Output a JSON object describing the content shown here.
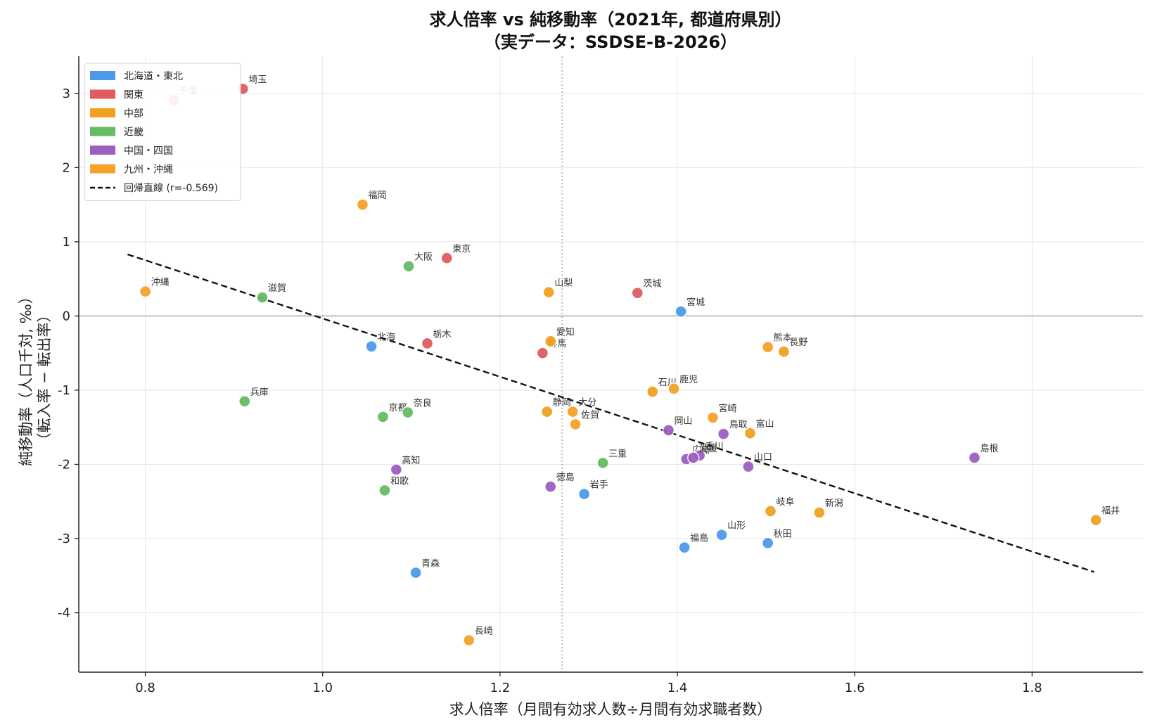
{
  "chart_data": {
    "type": "scatter",
    "title": "求人倍率 vs 純移動率（2021年, 都道府県別）",
    "subtitle": "（実データ：SSDSE-B-2026）",
    "xlabel": "求人倍率（月間有効求人数÷月間有効求職者数）",
    "ylabel": "純移動率（人口千対, ‰）",
    "ylabel2": "（転入率 − 転出率）",
    "xlim": [
      0.725,
      1.925
    ],
    "ylim": [
      -4.8,
      3.5
    ],
    "xticks": [
      0.8,
      1.0,
      1.2,
      1.4,
      1.6,
      1.8
    ],
    "xtick_labels": [
      "0.8",
      "1.0",
      "1.2",
      "1.4",
      "1.6",
      "1.8"
    ],
    "yticks": [
      -4,
      -3,
      -2,
      -1,
      0,
      1,
      2,
      3
    ],
    "ytick_labels": [
      "-4",
      "-3",
      "-2",
      "-1",
      "0",
      "1",
      "2",
      "3"
    ],
    "grid": true,
    "legend_position": "top-left",
    "zero_line_y": 0,
    "mean_line_x": 1.27,
    "regression": {
      "label": "回帰直線 (r=-0.569)",
      "x": [
        0.78,
        1.87
      ],
      "y": [
        0.83,
        -3.45
      ]
    },
    "groups": [
      {
        "name": "北海道・東北",
        "color": "#4e9ae8"
      },
      {
        "name": "関東",
        "color": "#e05c5f"
      },
      {
        "name": "中部",
        "color": "#f0a21f"
      },
      {
        "name": "近畿",
        "color": "#66bb66"
      },
      {
        "name": "中国・四国",
        "color": "#9c5fbf"
      },
      {
        "name": "九州・沖縄",
        "color": "#f5a32a"
      }
    ],
    "points": [
      {
        "label": "北海",
        "x": 1.055,
        "y": -0.41,
        "group": 0
      },
      {
        "label": "青森",
        "x": 1.105,
        "y": -3.46,
        "group": 0
      },
      {
        "label": "岩手",
        "x": 1.295,
        "y": -2.4,
        "group": 0
      },
      {
        "label": "宮城",
        "x": 1.404,
        "y": 0.06,
        "group": 0
      },
      {
        "label": "秋田",
        "x": 1.502,
        "y": -3.06,
        "group": 0
      },
      {
        "label": "山形",
        "x": 1.45,
        "y": -2.95,
        "group": 0
      },
      {
        "label": "福島",
        "x": 1.408,
        "y": -3.12,
        "group": 0
      },
      {
        "label": "茨城",
        "x": 1.355,
        "y": 0.31,
        "group": 1
      },
      {
        "label": "栃木",
        "x": 1.118,
        "y": -0.37,
        "group": 1
      },
      {
        "label": "群馬",
        "x": 1.248,
        "y": -0.5,
        "group": 1
      },
      {
        "label": "埼玉",
        "x": 0.91,
        "y": 3.06,
        "group": 1
      },
      {
        "label": "千葉",
        "x": 0.832,
        "y": 2.91,
        "group": 1
      },
      {
        "label": "東京",
        "x": 1.14,
        "y": 0.78,
        "group": 1
      },
      {
        "label": "新潟",
        "x": 1.56,
        "y": -2.65,
        "group": 2
      },
      {
        "label": "富山",
        "x": 1.482,
        "y": -1.58,
        "group": 2
      },
      {
        "label": "石川",
        "x": 1.372,
        "y": -1.02,
        "group": 2
      },
      {
        "label": "福井",
        "x": 1.872,
        "y": -2.75,
        "group": 2
      },
      {
        "label": "山梨",
        "x": 1.255,
        "y": 0.32,
        "group": 2
      },
      {
        "label": "長野",
        "x": 1.52,
        "y": -0.48,
        "group": 2
      },
      {
        "label": "岐阜",
        "x": 1.505,
        "y": -2.63,
        "group": 2
      },
      {
        "label": "静岡",
        "x": 1.253,
        "y": -1.29,
        "group": 2
      },
      {
        "label": "愛知",
        "x": 1.257,
        "y": -0.34,
        "group": 2
      },
      {
        "label": "三重",
        "x": 1.316,
        "y": -1.98,
        "group": 3
      },
      {
        "label": "滋賀",
        "x": 0.932,
        "y": 0.25,
        "group": 3
      },
      {
        "label": "京都",
        "x": 1.068,
        "y": -1.36,
        "group": 3
      },
      {
        "label": "大阪",
        "x": 1.097,
        "y": 0.67,
        "group": 3
      },
      {
        "label": "兵庫",
        "x": 0.912,
        "y": -1.15,
        "group": 3
      },
      {
        "label": "奈良",
        "x": 1.096,
        "y": -1.3,
        "group": 3
      },
      {
        "label": "和歌",
        "x": 1.07,
        "y": -2.35,
        "group": 3
      },
      {
        "label": "鳥取",
        "x": 1.452,
        "y": -1.59,
        "group": 4
      },
      {
        "label": "島根",
        "x": 1.735,
        "y": -1.91,
        "group": 4
      },
      {
        "label": "岡山",
        "x": 1.39,
        "y": -1.54,
        "group": 4
      },
      {
        "label": "広島",
        "x": 1.41,
        "y": -1.93,
        "group": 4
      },
      {
        "label": "山口",
        "x": 1.48,
        "y": -2.03,
        "group": 4
      },
      {
        "label": "徳島",
        "x": 1.257,
        "y": -2.3,
        "group": 4
      },
      {
        "label": "香川",
        "x": 1.425,
        "y": -1.88,
        "group": 4
      },
      {
        "label": "愛媛",
        "x": 1.418,
        "y": -1.91,
        "group": 4
      },
      {
        "label": "高知",
        "x": 1.083,
        "y": -2.07,
        "group": 4
      },
      {
        "label": "福岡",
        "x": 1.045,
        "y": 1.5,
        "group": 5
      },
      {
        "label": "佐賀",
        "x": 1.285,
        "y": -1.46,
        "group": 5
      },
      {
        "label": "長崎",
        "x": 1.165,
        "y": -4.37,
        "group": 5
      },
      {
        "label": "熊本",
        "x": 1.502,
        "y": -0.42,
        "group": 5
      },
      {
        "label": "大分",
        "x": 1.282,
        "y": -1.29,
        "group": 5
      },
      {
        "label": "宮崎",
        "x": 1.44,
        "y": -1.37,
        "group": 5
      },
      {
        "label": "鹿児",
        "x": 1.396,
        "y": -0.98,
        "group": 5
      },
      {
        "label": "沖縄",
        "x": 0.8,
        "y": 0.33,
        "group": 5
      }
    ]
  }
}
